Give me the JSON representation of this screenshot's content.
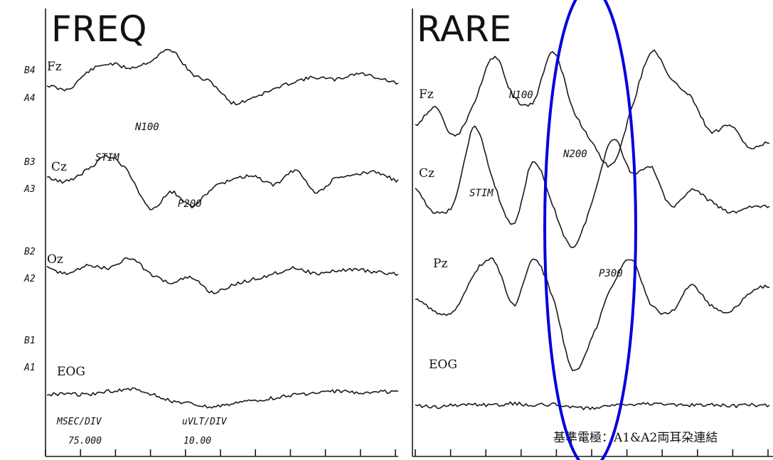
{
  "chart_data": [
    {
      "type": "line",
      "title": "FREQ",
      "gain_labels": [
        "B4",
        "A4",
        "B3",
        "A3",
        "B2",
        "A2",
        "B1",
        "A1"
      ],
      "series": [
        {
          "name": "Fz",
          "y": [
            0.0,
            -0.1,
            0.35,
            0.55,
            0.45,
            0.62,
            0.9,
            0.3,
            0.05,
            -0.45,
            -0.3,
            -0.1,
            0.1,
            0.2,
            0.15,
            0.3,
            0.2,
            0.05
          ]
        },
        {
          "name": "Cz",
          "y": [
            0.1,
            0.0,
            0.35,
            0.7,
            0.2,
            -0.8,
            -0.3,
            -0.7,
            -0.2,
            0.05,
            0.15,
            -0.1,
            0.3,
            -0.3,
            0.1,
            0.2,
            0.25,
            0.0
          ]
        },
        {
          "name": "Oz",
          "y": [
            0.2,
            0.0,
            0.3,
            0.2,
            0.55,
            0.0,
            -0.3,
            -0.15,
            -0.65,
            -0.4,
            -0.2,
            0.0,
            0.2,
            0.0,
            0.1,
            0.15,
            0.05,
            0.0
          ]
        },
        {
          "name": "EOG",
          "y": [
            0.0,
            0.05,
            0.0,
            0.15,
            0.25,
            0.05,
            -0.3,
            -0.45,
            -0.6,
            -0.4,
            -0.3,
            -0.15,
            0.0,
            0.05,
            0.15,
            0.1,
            0.15,
            0.1
          ]
        }
      ],
      "annotations": [
        {
          "text": "STIM",
          "series": "Cz"
        },
        {
          "text": "N100",
          "series": "Fz"
        },
        {
          "text": "P200",
          "series": "Cz"
        }
      ],
      "settings": {
        "msec_label": "MSEC/DIV",
        "msec_value": "75.000",
        "uv_label": "uVLT/DIV",
        "uv_value": "10.00"
      }
    },
    {
      "type": "line",
      "title": "RARE",
      "series": [
        {
          "name": "Fz",
          "y": [
            -0.2,
            0.1,
            -0.4,
            0.2,
            1.0,
            0.3,
            0.2,
            1.1,
            0.1,
            -0.5,
            -0.9,
            0.1,
            1.1,
            0.6,
            0.3,
            -0.3,
            -0.2,
            -0.6,
            -0.5
          ]
        },
        {
          "name": "Cz",
          "y": [
            0.1,
            -0.3,
            -0.1,
            1.2,
            0.2,
            -0.5,
            0.6,
            -0.2,
            -0.9,
            -0.1,
            1.0,
            0.4,
            0.5,
            -0.2,
            0.1,
            -0.1,
            -0.3,
            -0.2,
            -0.2
          ]
        },
        {
          "name": "Pz",
          "y": [
            0.0,
            -0.2,
            -0.2,
            0.4,
            0.6,
            -0.1,
            0.6,
            0.0,
            -1.1,
            -0.6,
            0.2,
            0.6,
            -0.1,
            -0.2,
            0.2,
            -0.1,
            -0.2,
            0.1,
            0.2
          ]
        },
        {
          "name": "EOG",
          "y": [
            0.0,
            -0.1,
            0.0,
            0.05,
            0.0,
            0.1,
            0.0,
            0.05,
            -0.1,
            -0.15,
            0.05,
            0.0,
            0.1,
            0.05,
            0.0,
            0.05,
            -0.05,
            0.0,
            0.0
          ]
        }
      ],
      "annotations": [
        {
          "text": "N100",
          "series": "Fz"
        },
        {
          "text": "STIM",
          "series": "Cz"
        },
        {
          "text": "N200",
          "series": "Fz"
        },
        {
          "text": "P300",
          "series": "Pz"
        }
      ],
      "highlight": {
        "shape": "ellipse",
        "color": "#0000dd"
      },
      "note": "基準電極：A1&A2両耳朶連結"
    }
  ]
}
